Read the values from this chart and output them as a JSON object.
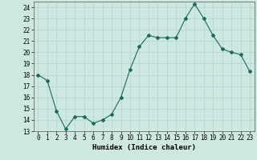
{
  "x": [
    0,
    1,
    2,
    3,
    4,
    5,
    6,
    7,
    8,
    9,
    10,
    11,
    12,
    13,
    14,
    15,
    16,
    17,
    18,
    19,
    20,
    21,
    22,
    23
  ],
  "y": [
    18,
    17.5,
    14.8,
    13.2,
    14.3,
    14.3,
    13.7,
    14.0,
    14.5,
    16.0,
    18.5,
    20.5,
    21.5,
    21.3,
    21.3,
    21.3,
    23.0,
    24.3,
    23.0,
    21.5,
    20.3,
    20.0,
    19.8,
    18.3
  ],
  "line_color": "#1a6b5a",
  "marker": "D",
  "marker_size": 2.0,
  "line_width": 0.8,
  "bg_color": "#cce8e0",
  "grid_color": "#b0d4cc",
  "xlabel": "Humidex (Indice chaleur)",
  "xlim": [
    -0.5,
    23.5
  ],
  "ylim": [
    13,
    24.5
  ],
  "yticks": [
    13,
    14,
    15,
    16,
    17,
    18,
    19,
    20,
    21,
    22,
    23,
    24
  ],
  "xtick_labels": [
    "0",
    "1",
    "2",
    "3",
    "4",
    "5",
    "6",
    "7",
    "8",
    "9",
    "10",
    "11",
    "12",
    "13",
    "14",
    "15",
    "16",
    "17",
    "18",
    "19",
    "20",
    "21",
    "22",
    "23"
  ],
  "label_fontsize": 6.5,
  "tick_fontsize": 5.5
}
